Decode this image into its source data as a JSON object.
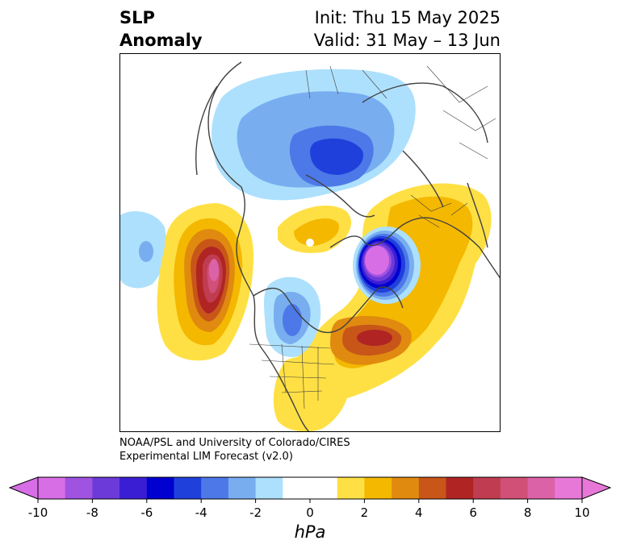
{
  "title": {
    "left_line1": "SLP",
    "left_line2": "Anomaly",
    "right_line1": "Init: Thu 15 May 2025",
    "right_line2": "Valid: 31 May – 13 Jun"
  },
  "credit": {
    "line1": "NOAA/PSL and University of Colorado/CIRES",
    "line2": "Experimental LIM Forecast (v2.0)"
  },
  "colorbar": {
    "unit": "hPa",
    "min": -10,
    "max": 10,
    "ticks": [
      "-10",
      "-8",
      "-6",
      "-4",
      "-2",
      "0",
      "2",
      "4",
      "6",
      "8",
      "10"
    ],
    "colors": [
      "#d86ee6",
      "#a052e0",
      "#6c3ad8",
      "#3a1ed4",
      "#0000d0",
      "#2040dc",
      "#4c78e8",
      "#78aef0",
      "#ade0fc",
      "#ffffff",
      "#ffffff",
      "#ffe044",
      "#f4b800",
      "#e08a10",
      "#c85618",
      "#b02424",
      "#c03c50",
      "#d05078",
      "#dc62a8",
      "#e878d8"
    ]
  }
}
